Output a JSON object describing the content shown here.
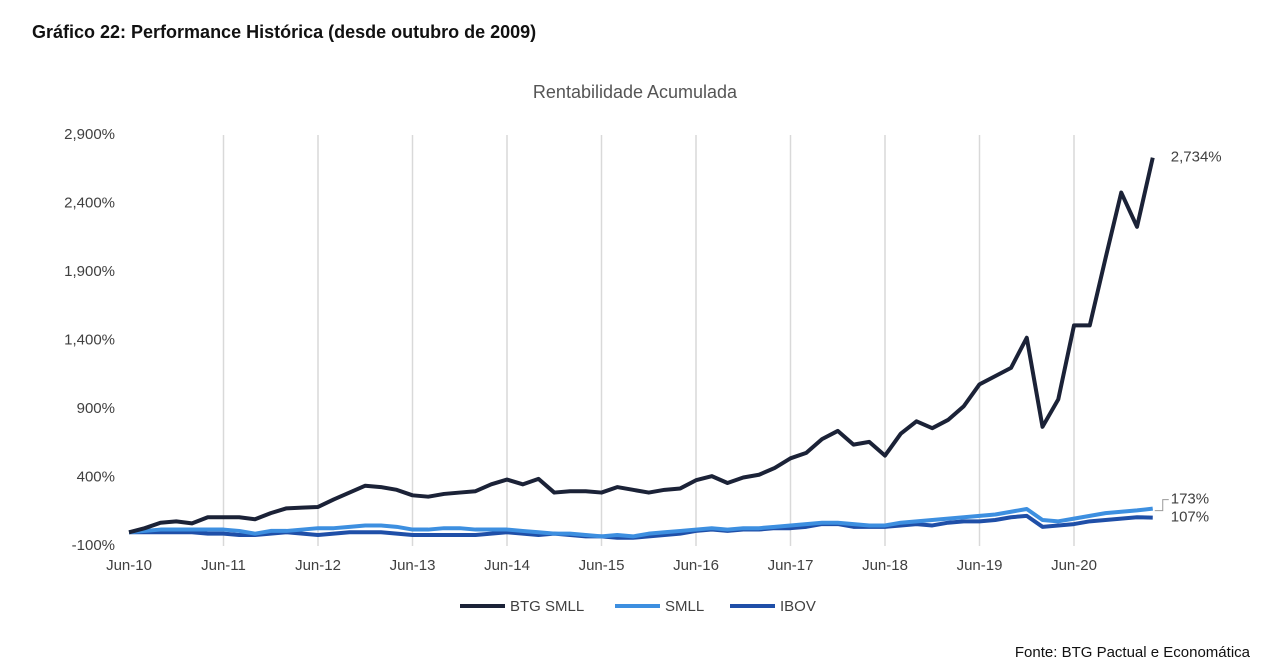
{
  "header": {
    "title": "Gráfico 22: Performance Histórica (desde outubro de 2009)"
  },
  "source": "Fonte: BTG Pactual e Economática",
  "chart_data": {
    "type": "line",
    "title": "Rentabilidade Acumulada",
    "categories": [
      "Jun-10",
      null,
      null,
      null,
      null,
      null,
      "Jun-11",
      null,
      null,
      null,
      null,
      null,
      "Jun-12",
      null,
      null,
      null,
      null,
      null,
      "Jun-13",
      null,
      null,
      null,
      null,
      null,
      "Jun-14",
      null,
      null,
      null,
      null,
      null,
      "Jun-15",
      null,
      null,
      null,
      null,
      null,
      "Jun-16",
      null,
      null,
      null,
      null,
      null,
      "Jun-17",
      null,
      null,
      null,
      null,
      null,
      "Jun-18",
      null,
      null,
      null,
      null,
      null,
      "Jun-19",
      null,
      null,
      null,
      null,
      null,
      "Jun-20",
      null,
      null,
      null,
      null,
      null
    ],
    "series": [
      {
        "name": "BTG SMLL",
        "color": "#1b2237",
        "values": [
          0,
          30,
          70,
          80,
          65,
          110,
          110,
          110,
          95,
          140,
          175,
          180,
          185,
          240,
          290,
          340,
          330,
          310,
          270,
          260,
          280,
          290,
          300,
          350,
          385,
          350,
          390,
          290,
          300,
          300,
          290,
          330,
          310,
          290,
          310,
          320,
          380,
          410,
          360,
          400,
          420,
          470,
          540,
          580,
          680,
          740,
          640,
          660,
          560,
          720,
          810,
          760,
          820,
          920,
          1080,
          1140,
          1200,
          1420,
          770,
          970,
          1510,
          1510,
          2000,
          2480,
          2230,
          2734
        ]
      },
      {
        "name": "SMLL",
        "color": "#3d8fe0",
        "values": [
          0,
          10,
          20,
          20,
          20,
          20,
          20,
          10,
          -10,
          10,
          10,
          20,
          30,
          30,
          40,
          50,
          50,
          40,
          20,
          20,
          30,
          30,
          20,
          20,
          20,
          10,
          0,
          -10,
          -10,
          -20,
          -30,
          -20,
          -30,
          -10,
          0,
          10,
          20,
          30,
          20,
          30,
          30,
          40,
          50,
          60,
          70,
          70,
          60,
          50,
          50,
          70,
          80,
          90,
          100,
          110,
          120,
          130,
          150,
          170,
          90,
          80,
          100,
          120,
          140,
          150,
          160,
          173
        ]
      },
      {
        "name": "IBOV",
        "color": "#1f4fa8",
        "values": [
          0,
          0,
          0,
          0,
          0,
          -10,
          -10,
          -20,
          -20,
          -10,
          0,
          -10,
          -20,
          -10,
          0,
          0,
          0,
          -10,
          -20,
          -20,
          -20,
          -20,
          -20,
          -10,
          0,
          -10,
          -20,
          -10,
          -20,
          -30,
          -30,
          -40,
          -40,
          -30,
          -20,
          -10,
          10,
          20,
          10,
          20,
          20,
          30,
          30,
          40,
          60,
          60,
          40,
          40,
          40,
          50,
          60,
          50,
          70,
          80,
          80,
          90,
          110,
          120,
          40,
          50,
          60,
          80,
          90,
          100,
          110,
          107
        ]
      }
    ],
    "annotations": [
      {
        "label": "2,734%",
        "value": 2734
      },
      {
        "label": "173%",
        "value": 173
      },
      {
        "label": "107%",
        "value": 107
      }
    ],
    "ylim": [
      -100,
      2900
    ],
    "yticks": [
      {
        "value": -100,
        "label": "-100%"
      },
      {
        "value": 400,
        "label": "400%"
      },
      {
        "value": 900,
        "label": "900%"
      },
      {
        "value": 1400,
        "label": "1,400%"
      },
      {
        "value": 1900,
        "label": "1,900%"
      },
      {
        "value": 2400,
        "label": "2,400%"
      },
      {
        "value": 2900,
        "label": "2,900%"
      }
    ],
    "grid": true,
    "legend": "bottom"
  }
}
